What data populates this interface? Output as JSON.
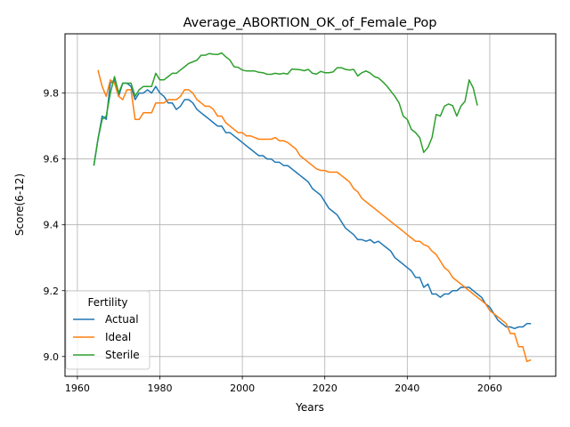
{
  "chart_data": {
    "type": "line",
    "title": "Average_ABORTION_OK_of_Female_Pop",
    "xlabel": "Years",
    "ylabel": "Score(6-12)",
    "xlim": [
      1957,
      2076
    ],
    "ylim": [
      8.94,
      9.98
    ],
    "xticks": [
      1960,
      1980,
      2000,
      2020,
      2040,
      2060
    ],
    "yticks": [
      9.0,
      9.2,
      9.4,
      9.6,
      9.8
    ],
    "xtick_labels": [
      "1960",
      "1980",
      "2000",
      "2020",
      "2040",
      "2060"
    ],
    "ytick_labels": [
      "9.0",
      "9.2",
      "9.4",
      "9.6",
      "9.8"
    ],
    "grid": true,
    "legend": {
      "title": "Fertility",
      "position": "lower-left"
    },
    "colors": {
      "Actual": "#1f77b4",
      "Ideal": "#ff7f0e",
      "Sterile": "#2ca02c"
    },
    "series": [
      {
        "name": "Actual",
        "x": [
          1964,
          1965,
          1966,
          1967,
          1968,
          1969,
          1970,
          1971,
          1972,
          1973,
          1974,
          1975,
          1976,
          1977,
          1978,
          1979,
          1980,
          1981,
          1982,
          1983,
          1984,
          1985,
          1986,
          1987,
          1988,
          1989,
          1990,
          1991,
          1992,
          1993,
          1994,
          1995,
          1996,
          1997,
          1998,
          1999,
          2000,
          2001,
          2002,
          2003,
          2004,
          2005,
          2006,
          2007,
          2008,
          2009,
          2010,
          2011,
          2012,
          2013,
          2014,
          2015,
          2016,
          2017,
          2018,
          2019,
          2020,
          2021,
          2022,
          2023,
          2024,
          2025,
          2026,
          2027,
          2028,
          2029,
          2030,
          2031,
          2032,
          2033,
          2034,
          2035,
          2036,
          2037,
          2038,
          2039,
          2040,
          2041,
          2042,
          2043,
          2044,
          2045,
          2046,
          2047,
          2048,
          2049,
          2050,
          2051,
          2052,
          2053,
          2054,
          2055,
          2056,
          2057,
          2058,
          2059,
          2060,
          2061,
          2062,
          2063,
          2064,
          2065,
          2066,
          2067,
          2068,
          2069,
          2070
        ],
        "values": [
          9.58,
          9.66,
          9.73,
          9.72,
          9.83,
          9.84,
          9.79,
          9.83,
          9.83,
          9.82,
          9.78,
          9.8,
          9.8,
          9.81,
          9.8,
          9.82,
          9.8,
          9.79,
          9.77,
          9.77,
          9.75,
          9.76,
          9.78,
          9.78,
          9.77,
          9.75,
          9.74,
          9.73,
          9.72,
          9.71,
          9.7,
          9.7,
          9.68,
          9.68,
          9.67,
          9.66,
          9.65,
          9.64,
          9.63,
          9.62,
          9.61,
          9.61,
          9.6,
          9.6,
          9.59,
          9.59,
          9.58,
          9.58,
          9.57,
          9.56,
          9.55,
          9.54,
          9.53,
          9.51,
          9.5,
          9.49,
          9.47,
          9.45,
          9.44,
          9.43,
          9.41,
          9.39,
          9.38,
          9.37,
          9.355,
          9.355,
          9.35,
          9.355,
          9.345,
          9.35,
          9.34,
          9.33,
          9.32,
          9.3,
          9.29,
          9.28,
          9.27,
          9.26,
          9.24,
          9.24,
          9.21,
          9.22,
          9.19,
          9.19,
          9.18,
          9.19,
          9.19,
          9.2,
          9.2,
          9.21,
          9.21,
          9.21,
          9.2,
          9.19,
          9.18,
          9.16,
          9.15,
          9.13,
          9.11,
          9.1,
          9.09,
          9.09,
          9.085,
          9.09,
          9.09,
          9.1,
          9.1
        ]
      },
      {
        "name": "Ideal",
        "x": [
          1965,
          1966,
          1967,
          1968,
          1969,
          1970,
          1971,
          1972,
          1973,
          1974,
          1975,
          1976,
          1977,
          1978,
          1979,
          1980,
          1981,
          1982,
          1983,
          1984,
          1985,
          1986,
          1987,
          1988,
          1989,
          1990,
          1991,
          1992,
          1993,
          1994,
          1995,
          1996,
          1997,
          1998,
          1999,
          2000,
          2001,
          2002,
          2003,
          2004,
          2005,
          2006,
          2007,
          2008,
          2009,
          2010,
          2011,
          2012,
          2013,
          2014,
          2015,
          2016,
          2017,
          2018,
          2019,
          2020,
          2021,
          2022,
          2023,
          2024,
          2025,
          2026,
          2027,
          2028,
          2029,
          2030,
          2031,
          2032,
          2033,
          2034,
          2035,
          2036,
          2037,
          2038,
          2039,
          2040,
          2041,
          2042,
          2043,
          2044,
          2045,
          2046,
          2047,
          2048,
          2049,
          2050,
          2051,
          2052,
          2053,
          2054,
          2055,
          2056,
          2057,
          2058,
          2059,
          2060,
          2061,
          2062,
          2063,
          2064,
          2065,
          2066,
          2067,
          2068,
          2069,
          2070
        ],
        "values": [
          9.87,
          9.82,
          9.79,
          9.84,
          9.83,
          9.79,
          9.78,
          9.81,
          9.81,
          9.72,
          9.72,
          9.74,
          9.74,
          9.74,
          9.77,
          9.77,
          9.77,
          9.78,
          9.78,
          9.78,
          9.79,
          9.81,
          9.81,
          9.8,
          9.78,
          9.77,
          9.76,
          9.76,
          9.75,
          9.73,
          9.73,
          9.71,
          9.7,
          9.69,
          9.68,
          9.68,
          9.67,
          9.67,
          9.665,
          9.66,
          9.66,
          9.66,
          9.66,
          9.665,
          9.655,
          9.655,
          9.65,
          9.64,
          9.63,
          9.61,
          9.6,
          9.59,
          9.58,
          9.57,
          9.565,
          9.565,
          9.56,
          9.56,
          9.56,
          9.55,
          9.54,
          9.53,
          9.51,
          9.5,
          9.48,
          9.47,
          9.46,
          9.45,
          9.44,
          9.43,
          9.42,
          9.41,
          9.4,
          9.39,
          9.38,
          9.37,
          9.36,
          9.35,
          9.35,
          9.34,
          9.335,
          9.32,
          9.31,
          9.29,
          9.27,
          9.26,
          9.24,
          9.23,
          9.22,
          9.21,
          9.2,
          9.19,
          9.18,
          9.17,
          9.16,
          9.14,
          9.13,
          9.12,
          9.11,
          9.1,
          9.07,
          9.07,
          9.03,
          9.03,
          8.985,
          8.99
        ]
      },
      {
        "name": "Sterile",
        "x": [
          1964,
          1965,
          1966,
          1967,
          1968,
          1969,
          1970,
          1971,
          1972,
          1973,
          1974,
          1975,
          1976,
          1977,
          1978,
          1979,
          1980,
          1981,
          1982,
          1983,
          1984,
          1985,
          1986,
          1987,
          1988,
          1989,
          1990,
          1991,
          1992,
          1993,
          1994,
          1995,
          1996,
          1997,
          1998,
          1999,
          2000,
          2001,
          2002,
          2003,
          2004,
          2005,
          2006,
          2007,
          2008,
          2009,
          2010,
          2011,
          2012,
          2013,
          2014,
          2015,
          2016,
          2017,
          2018,
          2019,
          2020,
          2021,
          2022,
          2023,
          2024,
          2025,
          2026,
          2027,
          2028,
          2029,
          2030,
          2031,
          2032,
          2033,
          2034,
          2035,
          2036,
          2037,
          2038,
          2039,
          2040,
          2041,
          2042,
          2043,
          2044,
          2045,
          2046,
          2047,
          2048,
          2049,
          2050,
          2051,
          2052,
          2053,
          2054,
          2055,
          2056,
          2057
        ],
        "values": [
          9.58,
          9.66,
          9.72,
          9.73,
          9.8,
          9.85,
          9.8,
          9.83,
          9.83,
          9.83,
          9.79,
          9.81,
          9.82,
          9.82,
          9.82,
          9.86,
          9.84,
          9.84,
          9.85,
          9.86,
          9.86,
          9.87,
          9.88,
          9.89,
          9.895,
          9.9,
          9.915,
          9.915,
          9.92,
          9.918,
          9.917,
          9.922,
          9.91,
          9.9,
          9.88,
          9.878,
          9.87,
          9.867,
          9.867,
          9.867,
          9.863,
          9.862,
          9.857,
          9.857,
          9.86,
          9.858,
          9.86,
          9.858,
          9.873,
          9.872,
          9.871,
          9.868,
          9.872,
          9.86,
          9.858,
          9.866,
          9.862,
          9.862,
          9.864,
          9.877,
          9.877,
          9.872,
          9.87,
          9.872,
          9.852,
          9.862,
          9.867,
          9.861,
          9.85,
          9.846,
          9.835,
          9.822,
          9.806,
          9.79,
          9.77,
          9.73,
          9.72,
          9.69,
          9.68,
          9.665,
          9.62,
          9.635,
          9.665,
          9.735,
          9.73,
          9.76,
          9.767,
          9.762,
          9.73,
          9.76,
          9.775,
          9.84,
          9.815,
          9.762
        ]
      }
    ]
  }
}
